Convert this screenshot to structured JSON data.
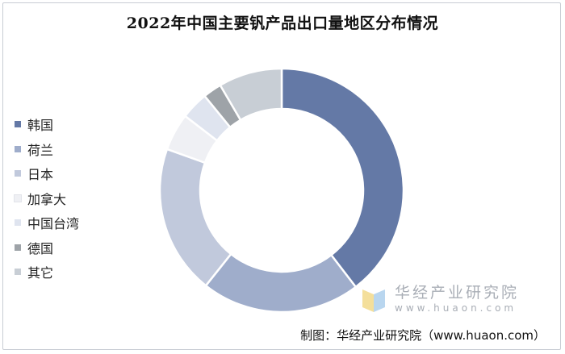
{
  "title": "2022年中国主要钒产品出口量地区分布情况",
  "source": "制图：华经产业研究院（www.huaon.com）",
  "watermark": {
    "name": "华经产业研究院",
    "url": "www.huaon.com"
  },
  "chart_data": {
    "type": "pie",
    "donut": true,
    "legend_position": "left",
    "categories": [
      "韩国",
      "荷兰",
      "日本",
      "加拿大",
      "中国台湾",
      "德国",
      "其它"
    ],
    "values": [
      40.0,
      21.3,
      20.0,
      5.0,
      3.7,
      2.5,
      8.5
    ],
    "colors": [
      "#6479a6",
      "#9fadcb",
      "#c1c9dc",
      "#eff0f4",
      "#dfe4ef",
      "#9ea3a8",
      "#c8ced5"
    ]
  }
}
